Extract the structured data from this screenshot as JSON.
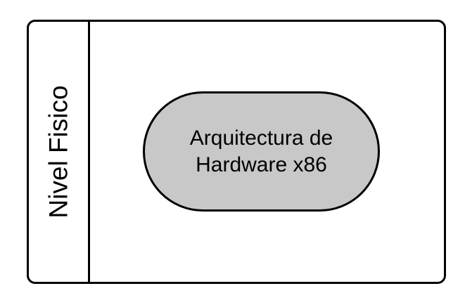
{
  "lane": {
    "label": "Nivel Fisico"
  },
  "node": {
    "line1": "Arquitectura de",
    "line2": "Hardware x86"
  },
  "colors": {
    "stroke": "#000000",
    "node_fill": "#c8c8c8",
    "background": "#ffffff"
  }
}
